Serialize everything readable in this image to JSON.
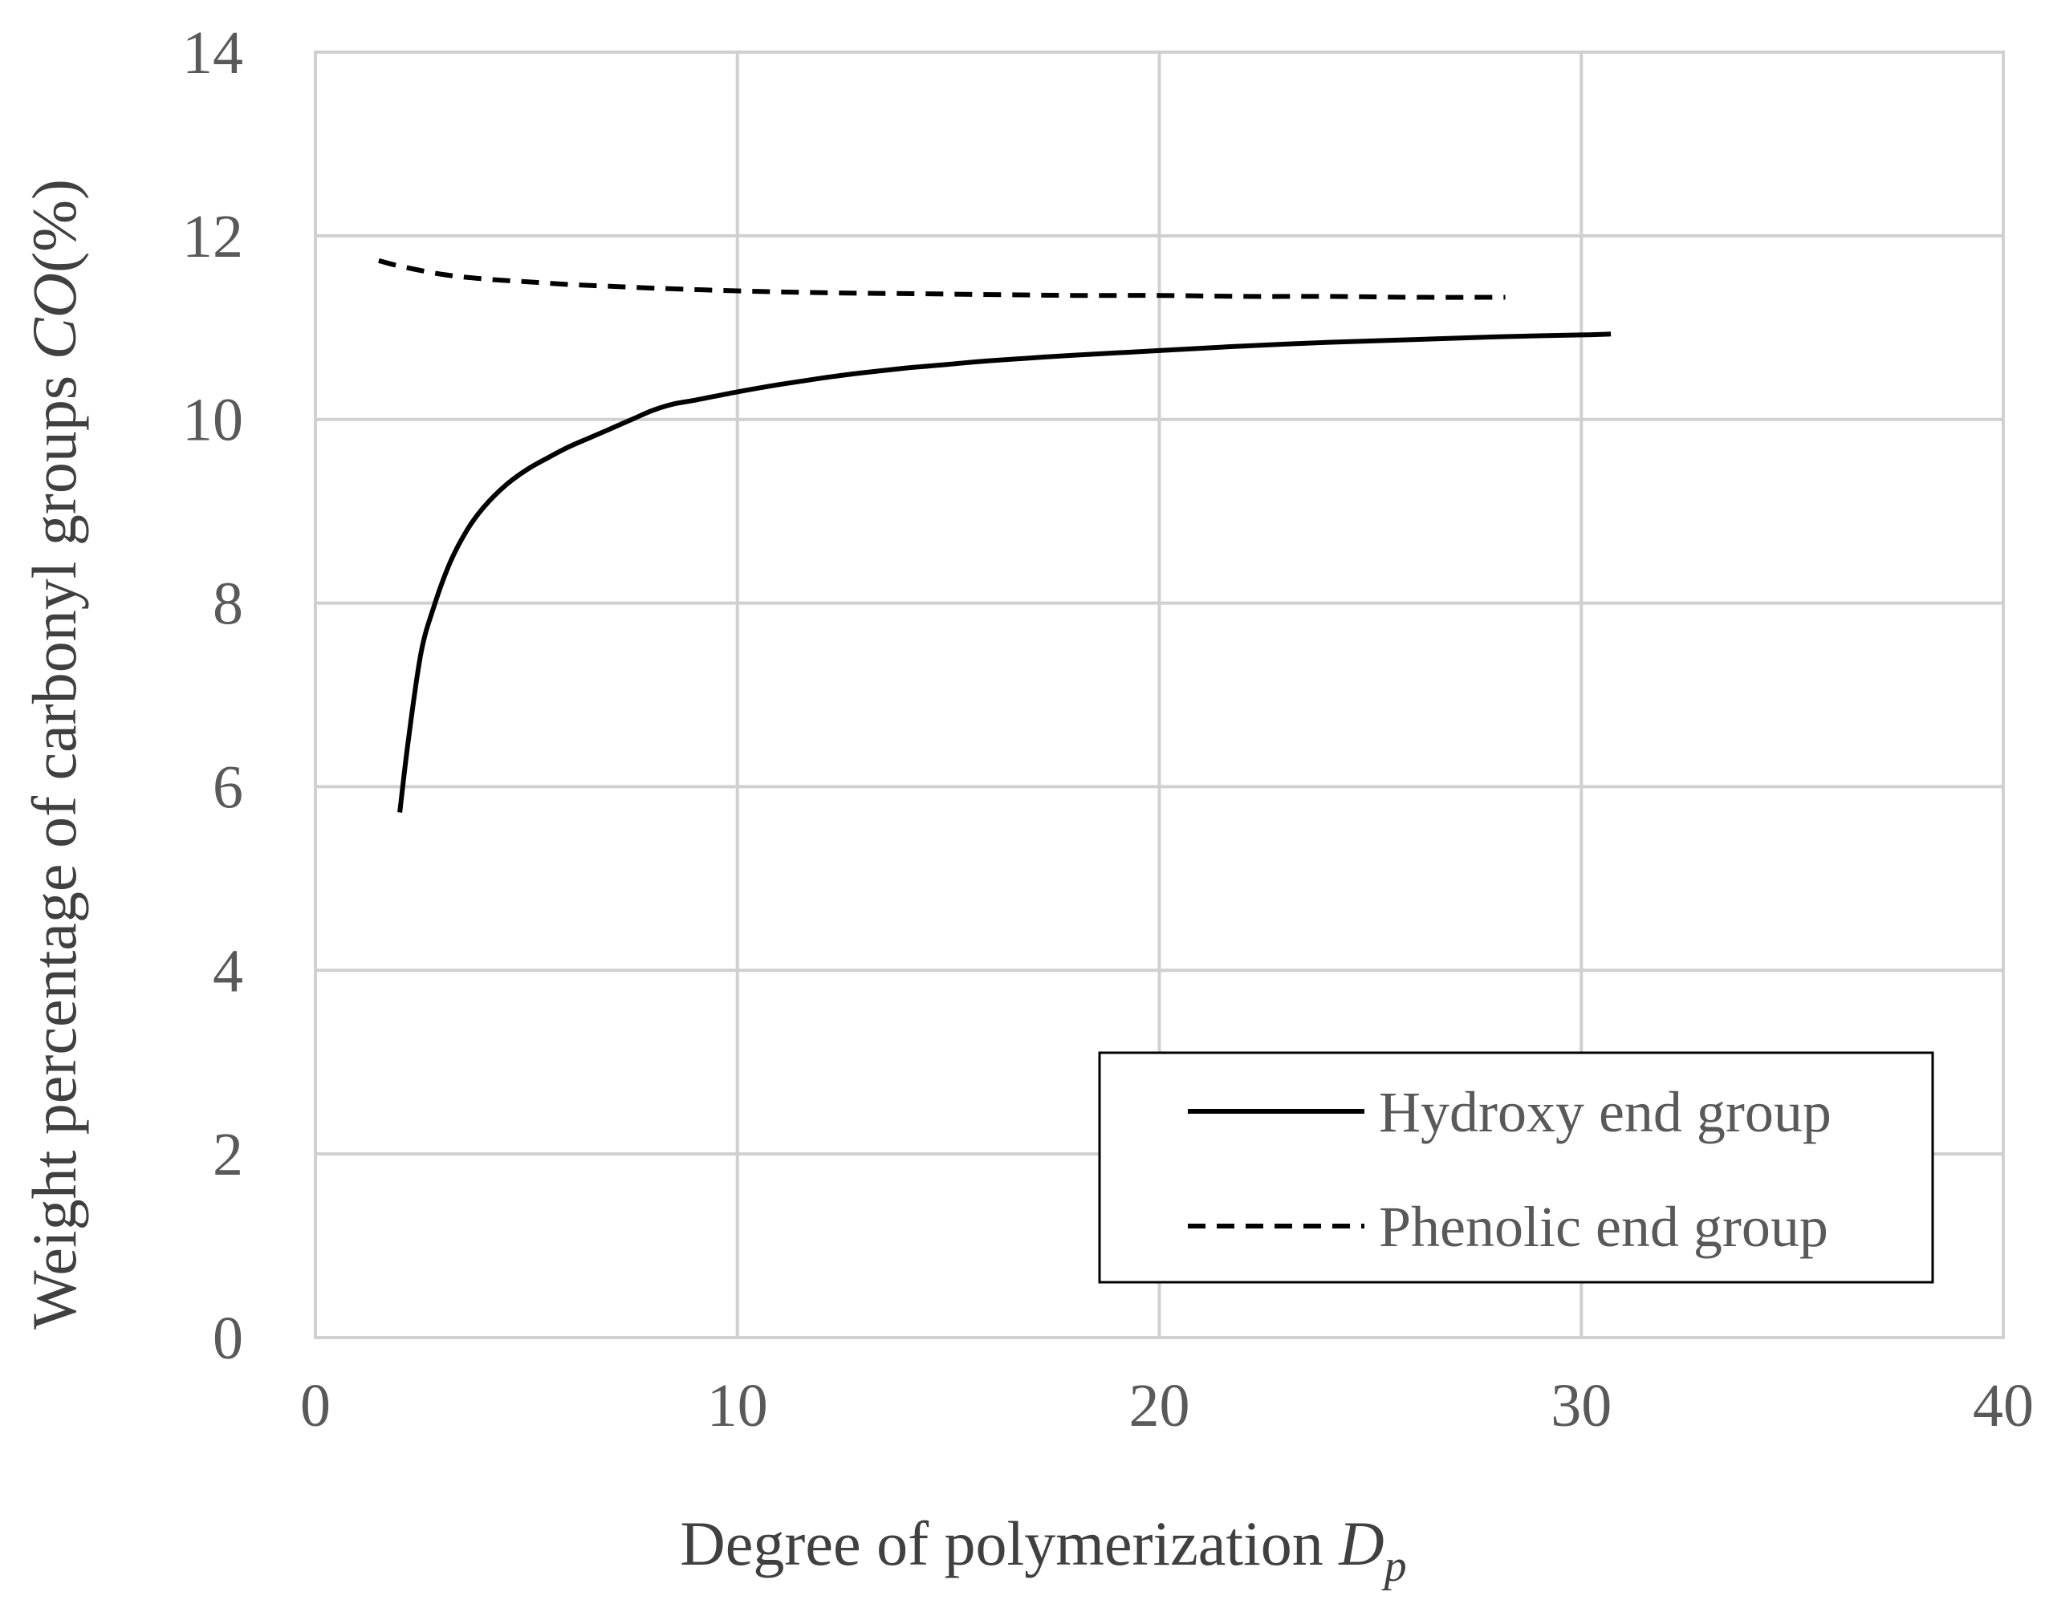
{
  "chart_data": {
    "type": "line",
    "title": "",
    "xlabel": {
      "main": "Degree of polymerization ",
      "var": "D",
      "sub": "p"
    },
    "ylabel": {
      "main": "Weight percentage of carbonyl groups ",
      "var": "CO",
      "tail": "(%)"
    },
    "xlim": [
      0,
      40
    ],
    "ylim": [
      0,
      14
    ],
    "xticks": [
      0,
      10,
      20,
      30,
      40
    ],
    "yticks": [
      0,
      2,
      4,
      6,
      8,
      10,
      12,
      14
    ],
    "xtick_labels": [
      "0",
      "10",
      "20",
      "30",
      "40"
    ],
    "ytick_labels": [
      "0",
      "2",
      "4",
      "6",
      "8",
      "10",
      "12",
      "14"
    ],
    "grid": true,
    "legend_position": "bottom-right",
    "series": [
      {
        "name": "Hydroxy end group",
        "style": "solid",
        "color": "#000000",
        "x": [
          2.0,
          2.2,
          2.5,
          2.8,
          3.2,
          3.6,
          4.0,
          4.5,
          5.0,
          5.5,
          6.0,
          6.5,
          7.0,
          7.5,
          8.0,
          8.5,
          9.0,
          10.0,
          11.0,
          12.0,
          13.0,
          14.0,
          15.0,
          16.0,
          18.0,
          20.0,
          22.0,
          24.0,
          26.0,
          28.0,
          30.0,
          30.7
        ],
        "y": [
          5.72,
          6.5,
          7.45,
          7.95,
          8.45,
          8.8,
          9.05,
          9.28,
          9.45,
          9.58,
          9.7,
          9.8,
          9.9,
          10.0,
          10.1,
          10.17,
          10.21,
          10.3,
          10.38,
          10.45,
          10.51,
          10.56,
          10.6,
          10.64,
          10.7,
          10.75,
          10.8,
          10.84,
          10.87,
          10.9,
          10.92,
          10.93
        ]
      },
      {
        "name": "Phenolic end group",
        "style": "dashed",
        "color": "#000000",
        "x": [
          1.5,
          2.0,
          3.0,
          4.0,
          5.0,
          6.0,
          7.0,
          8.0,
          10.0,
          12.0,
          14.0,
          16.0,
          18.0,
          20.0,
          22.0,
          24.0,
          26.0,
          28.2
        ],
        "y": [
          11.73,
          11.67,
          11.58,
          11.53,
          11.5,
          11.47,
          11.45,
          11.43,
          11.4,
          11.38,
          11.37,
          11.36,
          11.35,
          11.35,
          11.34,
          11.34,
          11.33,
          11.33
        ]
      }
    ]
  }
}
